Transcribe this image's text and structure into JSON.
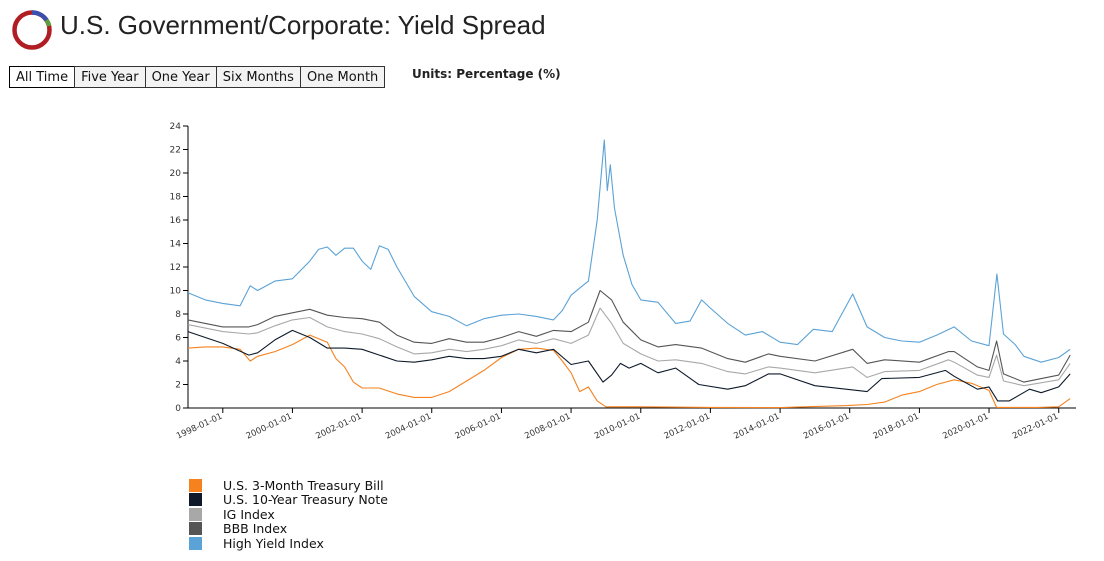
{
  "header": {
    "title": "U.S. Government/Corporate: Yield Spread",
    "units": "Units: Percentage (%)"
  },
  "range_buttons": [
    {
      "label": "All Time",
      "active": true
    },
    {
      "label": "Five Year",
      "active": false
    },
    {
      "label": "One Year",
      "active": false
    },
    {
      "label": "Six Months",
      "active": false
    },
    {
      "label": "One Month",
      "active": false
    }
  ],
  "colors": {
    "logo_ring": "#b01e23",
    "logo_accent_blue": "#3a4fb0",
    "logo_accent_green": "#5aa03c"
  },
  "chart_data": {
    "type": "line",
    "title": "",
    "xlabel": "",
    "ylabel": "",
    "ylim": [
      0,
      24
    ],
    "xlim": [
      "1997-01-01",
      "2022-07-01"
    ],
    "yticks": [
      "0",
      "2",
      "4",
      "6",
      "8",
      "10",
      "12",
      "14",
      "16",
      "18",
      "20",
      "22",
      "24"
    ],
    "xticks": [
      "1998-01-01",
      "2000-01-01",
      "2002-01-01",
      "2004-01-01",
      "2006-01-01",
      "2008-01-01",
      "2010-01-01",
      "2012-01-01",
      "2014-01-01",
      "2016-01-01",
      "2018-01-01",
      "2020-01-01",
      "2022-01-01"
    ],
    "grid": false,
    "legend_position": "bottom-left",
    "series": [
      {
        "name": "U.S. 3-Month Treasury Bill",
        "color": "#f5821f",
        "points": [
          [
            "1997-01-01",
            5.1
          ],
          [
            "1997-07-01",
            5.2
          ],
          [
            "1998-01-01",
            5.2
          ],
          [
            "1998-07-01",
            5.0
          ],
          [
            "1998-10-15",
            4.0
          ],
          [
            "1999-01-01",
            4.4
          ],
          [
            "1999-07-01",
            4.8
          ],
          [
            "2000-01-01",
            5.4
          ],
          [
            "2000-07-01",
            6.2
          ],
          [
            "2001-01-01",
            5.6
          ],
          [
            "2001-04-01",
            4.2
          ],
          [
            "2001-07-01",
            3.5
          ],
          [
            "2001-10-01",
            2.2
          ],
          [
            "2002-01-01",
            1.7
          ],
          [
            "2002-07-01",
            1.7
          ],
          [
            "2003-01-01",
            1.2
          ],
          [
            "2003-07-01",
            0.9
          ],
          [
            "2004-01-01",
            0.9
          ],
          [
            "2004-07-01",
            1.4
          ],
          [
            "2005-01-01",
            2.3
          ],
          [
            "2005-07-01",
            3.2
          ],
          [
            "2006-01-01",
            4.3
          ],
          [
            "2006-07-01",
            5.0
          ],
          [
            "2007-01-01",
            5.1
          ],
          [
            "2007-07-01",
            4.9
          ],
          [
            "2007-10-01",
            4.0
          ],
          [
            "2008-01-01",
            3.0
          ],
          [
            "2008-04-01",
            1.4
          ],
          [
            "2008-07-01",
            1.8
          ],
          [
            "2008-10-01",
            0.6
          ],
          [
            "2009-01-01",
            0.1
          ],
          [
            "2010-01-01",
            0.1
          ],
          [
            "2012-01-01",
            0.05
          ],
          [
            "2014-01-01",
            0.03
          ],
          [
            "2015-12-01",
            0.2
          ],
          [
            "2016-07-01",
            0.3
          ],
          [
            "2017-01-01",
            0.5
          ],
          [
            "2017-07-01",
            1.1
          ],
          [
            "2018-01-01",
            1.4
          ],
          [
            "2018-07-01",
            2.0
          ],
          [
            "2019-01-01",
            2.4
          ],
          [
            "2019-07-01",
            2.1
          ],
          [
            "2020-01-01",
            1.5
          ],
          [
            "2020-03-20",
            0.05
          ],
          [
            "2021-06-01",
            0.05
          ],
          [
            "2022-01-01",
            0.1
          ],
          [
            "2022-05-01",
            0.8
          ]
        ]
      },
      {
        "name": "U.S. 10-Year Treasury Note",
        "color": "#0e1a2a",
        "points": [
          [
            "1997-01-01",
            6.5
          ],
          [
            "1997-07-01",
            6.0
          ],
          [
            "1998-01-01",
            5.5
          ],
          [
            "1998-10-01",
            4.5
          ],
          [
            "1999-01-01",
            4.7
          ],
          [
            "1999-07-01",
            5.8
          ],
          [
            "2000-01-01",
            6.6
          ],
          [
            "2000-07-01",
            6.0
          ],
          [
            "2001-01-01",
            5.1
          ],
          [
            "2001-07-01",
            5.1
          ],
          [
            "2002-01-01",
            5.0
          ],
          [
            "2002-07-01",
            4.5
          ],
          [
            "2003-01-01",
            4.0
          ],
          [
            "2003-07-01",
            3.9
          ],
          [
            "2004-01-01",
            4.1
          ],
          [
            "2004-07-01",
            4.4
          ],
          [
            "2005-01-01",
            4.2
          ],
          [
            "2005-07-01",
            4.2
          ],
          [
            "2006-01-01",
            4.4
          ],
          [
            "2006-07-01",
            5.0
          ],
          [
            "2007-01-01",
            4.7
          ],
          [
            "2007-07-01",
            5.0
          ],
          [
            "2008-01-01",
            3.7
          ],
          [
            "2008-07-01",
            4.0
          ],
          [
            "2008-12-01",
            2.2
          ],
          [
            "2009-03-01",
            2.8
          ],
          [
            "2009-06-01",
            3.8
          ],
          [
            "2009-09-01",
            3.4
          ],
          [
            "2010-01-01",
            3.8
          ],
          [
            "2010-07-01",
            3.0
          ],
          [
            "2011-01-01",
            3.4
          ],
          [
            "2011-09-01",
            2.0
          ],
          [
            "2012-07-01",
            1.6
          ],
          [
            "2013-01-01",
            1.9
          ],
          [
            "2013-09-01",
            2.9
          ],
          [
            "2014-01-01",
            2.9
          ],
          [
            "2015-01-01",
            1.9
          ],
          [
            "2016-07-01",
            1.4
          ],
          [
            "2016-12-01",
            2.5
          ],
          [
            "2018-01-01",
            2.6
          ],
          [
            "2018-10-01",
            3.2
          ],
          [
            "2019-01-01",
            2.7
          ],
          [
            "2019-09-01",
            1.6
          ],
          [
            "2020-01-01",
            1.8
          ],
          [
            "2020-04-01",
            0.6
          ],
          [
            "2020-08-01",
            0.6
          ],
          [
            "2021-03-01",
            1.6
          ],
          [
            "2021-07-01",
            1.3
          ],
          [
            "2022-01-01",
            1.8
          ],
          [
            "2022-05-01",
            2.9
          ]
        ]
      },
      {
        "name": "IG Index",
        "color": "#a8a8a8",
        "points": [
          [
            "1997-01-01",
            7.1
          ],
          [
            "1997-07-01",
            6.8
          ],
          [
            "1998-01-01",
            6.5
          ],
          [
            "1998-10-01",
            6.3
          ],
          [
            "1999-01-01",
            6.4
          ],
          [
            "1999-07-01",
            7.0
          ],
          [
            "2000-01-01",
            7.5
          ],
          [
            "2000-07-01",
            7.7
          ],
          [
            "2001-01-01",
            6.9
          ],
          [
            "2001-07-01",
            6.5
          ],
          [
            "2002-01-01",
            6.3
          ],
          [
            "2002-07-01",
            5.9
          ],
          [
            "2003-01-01",
            5.2
          ],
          [
            "2003-07-01",
            4.6
          ],
          [
            "2004-01-01",
            4.7
          ],
          [
            "2004-07-01",
            5.0
          ],
          [
            "2005-01-01",
            4.8
          ],
          [
            "2005-07-01",
            5.0
          ],
          [
            "2006-01-01",
            5.3
          ],
          [
            "2006-07-01",
            5.8
          ],
          [
            "2007-01-01",
            5.5
          ],
          [
            "2007-07-01",
            5.9
          ],
          [
            "2008-01-01",
            5.5
          ],
          [
            "2008-07-01",
            6.2
          ],
          [
            "2008-11-01",
            8.5
          ],
          [
            "2009-03-01",
            7.2
          ],
          [
            "2009-07-01",
            5.5
          ],
          [
            "2010-01-01",
            4.6
          ],
          [
            "2010-07-01",
            4.0
          ],
          [
            "2011-01-01",
            4.1
          ],
          [
            "2011-10-01",
            3.8
          ],
          [
            "2012-07-01",
            3.1
          ],
          [
            "2013-01-01",
            2.9
          ],
          [
            "2013-09-01",
            3.5
          ],
          [
            "2014-01-01",
            3.4
          ],
          [
            "2015-01-01",
            3.0
          ],
          [
            "2016-02-01",
            3.5
          ],
          [
            "2016-07-01",
            2.6
          ],
          [
            "2017-01-01",
            3.1
          ],
          [
            "2018-01-01",
            3.2
          ],
          [
            "2018-11-01",
            4.1
          ],
          [
            "2019-01-01",
            3.9
          ],
          [
            "2019-09-01",
            2.8
          ],
          [
            "2020-01-01",
            2.6
          ],
          [
            "2020-03-20",
            4.5
          ],
          [
            "2020-06-01",
            2.3
          ],
          [
            "2021-01-01",
            1.9
          ],
          [
            "2022-01-01",
            2.4
          ],
          [
            "2022-05-01",
            3.8
          ]
        ]
      },
      {
        "name": "BBB Index",
        "color": "#555555",
        "points": [
          [
            "1997-01-01",
            7.5
          ],
          [
            "1997-07-01",
            7.2
          ],
          [
            "1998-01-01",
            6.9
          ],
          [
            "1998-10-01",
            6.9
          ],
          [
            "1999-01-01",
            7.1
          ],
          [
            "1999-07-01",
            7.8
          ],
          [
            "2000-01-01",
            8.1
          ],
          [
            "2000-07-01",
            8.4
          ],
          [
            "2001-01-01",
            7.9
          ],
          [
            "2001-07-01",
            7.7
          ],
          [
            "2002-01-01",
            7.6
          ],
          [
            "2002-07-01",
            7.3
          ],
          [
            "2003-01-01",
            6.2
          ],
          [
            "2003-07-01",
            5.6
          ],
          [
            "2004-01-01",
            5.5
          ],
          [
            "2004-07-01",
            5.9
          ],
          [
            "2005-01-01",
            5.6
          ],
          [
            "2005-07-01",
            5.6
          ],
          [
            "2006-01-01",
            6.0
          ],
          [
            "2006-07-01",
            6.5
          ],
          [
            "2007-01-01",
            6.1
          ],
          [
            "2007-07-01",
            6.6
          ],
          [
            "2008-01-01",
            6.5
          ],
          [
            "2008-07-01",
            7.3
          ],
          [
            "2008-11-01",
            10.0
          ],
          [
            "2009-03-01",
            9.2
          ],
          [
            "2009-07-01",
            7.3
          ],
          [
            "2010-01-01",
            5.8
          ],
          [
            "2010-07-01",
            5.2
          ],
          [
            "2011-01-01",
            5.4
          ],
          [
            "2011-10-01",
            5.1
          ],
          [
            "2012-07-01",
            4.2
          ],
          [
            "2013-01-01",
            3.9
          ],
          [
            "2013-09-01",
            4.6
          ],
          [
            "2014-01-01",
            4.4
          ],
          [
            "2015-01-01",
            4.0
          ],
          [
            "2016-02-01",
            5.0
          ],
          [
            "2016-07-01",
            3.8
          ],
          [
            "2017-01-01",
            4.1
          ],
          [
            "2018-01-01",
            3.9
          ],
          [
            "2018-11-01",
            4.8
          ],
          [
            "2019-01-01",
            4.8
          ],
          [
            "2019-09-01",
            3.5
          ],
          [
            "2020-01-01",
            3.2
          ],
          [
            "2020-03-20",
            5.7
          ],
          [
            "2020-06-01",
            2.9
          ],
          [
            "2021-01-01",
            2.2
          ],
          [
            "2022-01-01",
            2.8
          ],
          [
            "2022-05-01",
            4.5
          ]
        ]
      },
      {
        "name": "High Yield Index",
        "color": "#5ba2d6",
        "points": [
          [
            "1997-01-01",
            9.8
          ],
          [
            "1997-07-01",
            9.2
          ],
          [
            "1998-01-01",
            8.9
          ],
          [
            "1998-07-01",
            8.7
          ],
          [
            "1998-10-15",
            10.4
          ],
          [
            "1999-01-01",
            10.0
          ],
          [
            "1999-07-01",
            10.8
          ],
          [
            "2000-01-01",
            11.0
          ],
          [
            "2000-07-01",
            12.5
          ],
          [
            "2000-10-01",
            13.5
          ],
          [
            "2001-01-01",
            13.7
          ],
          [
            "2001-04-01",
            13.0
          ],
          [
            "2001-07-01",
            13.6
          ],
          [
            "2001-10-01",
            13.6
          ],
          [
            "2002-01-01",
            12.5
          ],
          [
            "2002-04-01",
            11.8
          ],
          [
            "2002-07-01",
            13.8
          ],
          [
            "2002-10-01",
            13.5
          ],
          [
            "2003-01-01",
            12.0
          ],
          [
            "2003-07-01",
            9.5
          ],
          [
            "2004-01-01",
            8.2
          ],
          [
            "2004-07-01",
            7.8
          ],
          [
            "2005-01-01",
            7.0
          ],
          [
            "2005-07-01",
            7.6
          ],
          [
            "2006-01-01",
            7.9
          ],
          [
            "2006-07-01",
            8.0
          ],
          [
            "2007-01-01",
            7.8
          ],
          [
            "2007-07-01",
            7.5
          ],
          [
            "2007-10-01",
            8.3
          ],
          [
            "2008-01-01",
            9.6
          ],
          [
            "2008-04-01",
            10.2
          ],
          [
            "2008-07-01",
            10.8
          ],
          [
            "2008-10-01",
            16.0
          ],
          [
            "2008-12-15",
            22.8
          ],
          [
            "2009-01-15",
            18.5
          ],
          [
            "2009-02-15",
            20.7
          ],
          [
            "2009-04-01",
            17.0
          ],
          [
            "2009-07-01",
            13.0
          ],
          [
            "2009-10-01",
            10.5
          ],
          [
            "2010-01-01",
            9.2
          ],
          [
            "2010-07-01",
            9.0
          ],
          [
            "2011-01-01",
            7.2
          ],
          [
            "2011-06-01",
            7.4
          ],
          [
            "2011-10-01",
            9.2
          ],
          [
            "2012-01-01",
            8.5
          ],
          [
            "2012-07-01",
            7.2
          ],
          [
            "2013-01-01",
            6.2
          ],
          [
            "2013-07-01",
            6.5
          ],
          [
            "2014-01-01",
            5.6
          ],
          [
            "2014-07-01",
            5.4
          ],
          [
            "2014-12-15",
            6.7
          ],
          [
            "2015-07-01",
            6.5
          ],
          [
            "2016-02-01",
            9.7
          ],
          [
            "2016-07-01",
            6.9
          ],
          [
            "2017-01-01",
            6.0
          ],
          [
            "2017-07-01",
            5.7
          ],
          [
            "2018-01-01",
            5.6
          ],
          [
            "2018-07-01",
            6.2
          ],
          [
            "2019-01-01",
            6.9
          ],
          [
            "2019-07-01",
            5.7
          ],
          [
            "2020-01-01",
            5.3
          ],
          [
            "2020-03-23",
            11.4
          ],
          [
            "2020-06-01",
            6.3
          ],
          [
            "2020-10-01",
            5.4
          ],
          [
            "2021-01-01",
            4.4
          ],
          [
            "2021-07-01",
            3.9
          ],
          [
            "2022-01-01",
            4.3
          ],
          [
            "2022-05-01",
            5.0
          ]
        ]
      }
    ]
  }
}
